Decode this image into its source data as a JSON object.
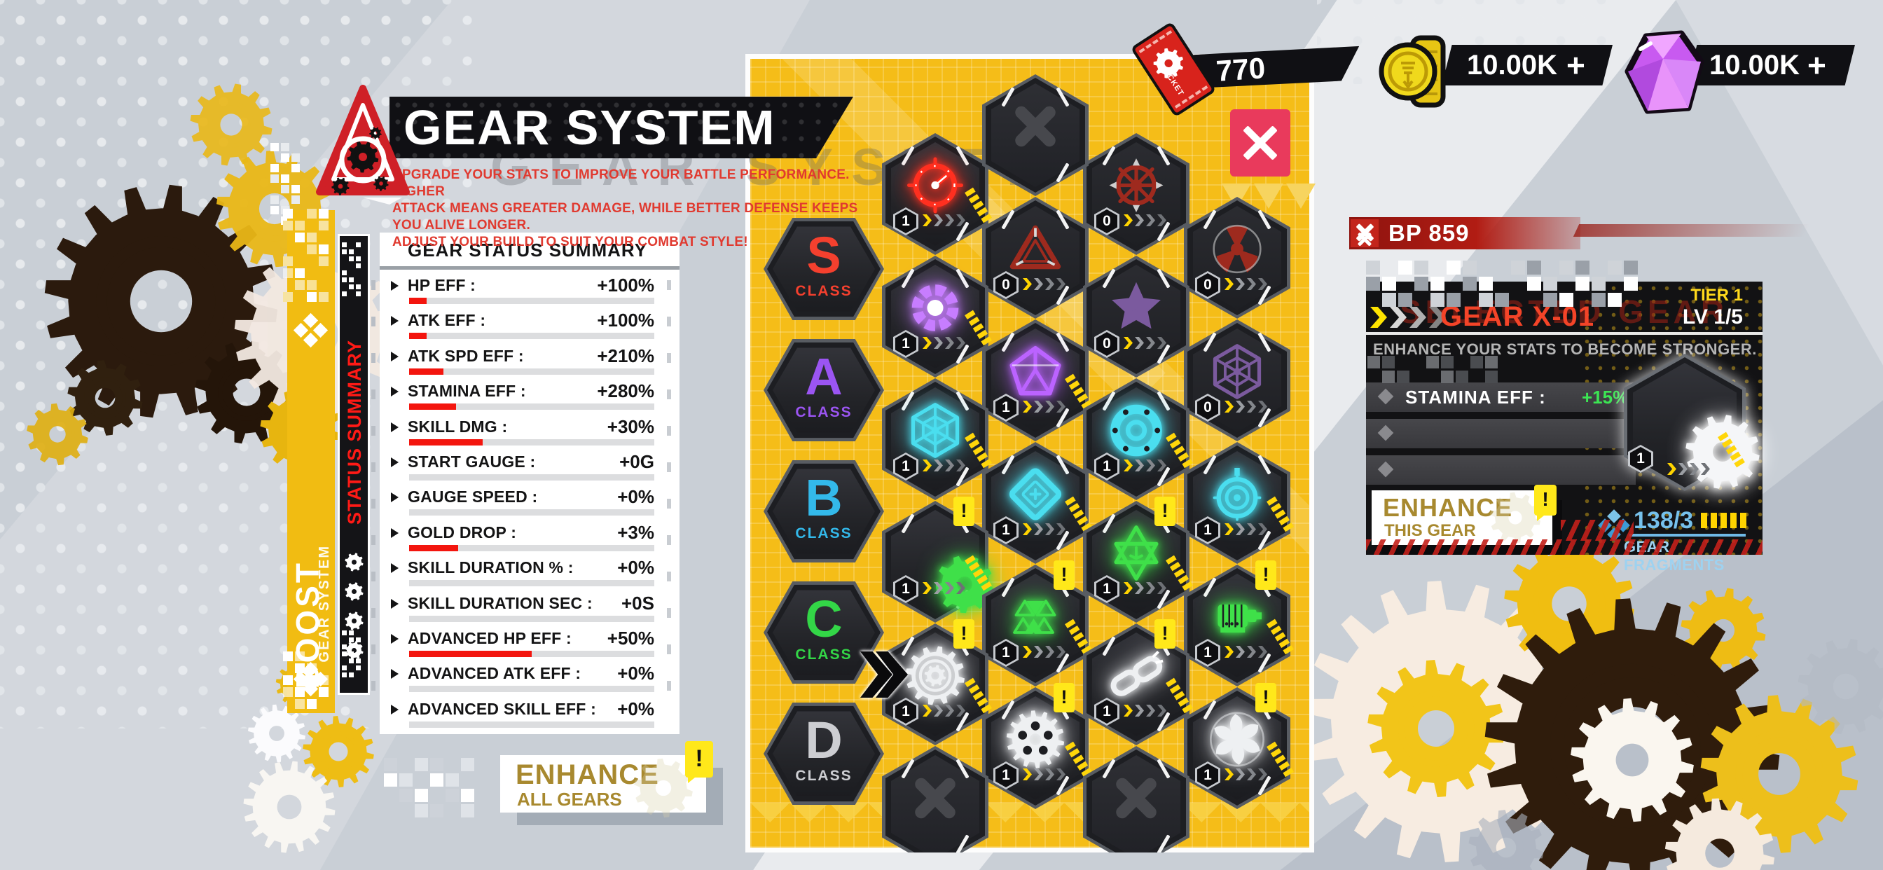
{
  "header": {
    "title": "GEAR SYSTEM",
    "ghost_title": "GEAR SYSTEM",
    "tagline_lines": [
      "UPGRADE YOUR STATS TO IMPROVE YOUR BATTLE PERFORMANCE. HIGHER",
      "ATTACK MEANS GREATER DAMAGE, WHILE BETTER DEFENSE KEEPS YOU ALIVE LONGER.",
      "ADJUST YOUR BUILD TO SUIT YOUR COMBAT STYLE!"
    ]
  },
  "side_tabs": {
    "boost": {
      "label": "BOOST",
      "sublabel": "GEAR SYSTEM"
    },
    "status_summary": {
      "label": "STATUS SUMMARY"
    }
  },
  "currencies": {
    "tickets": {
      "value": "770",
      "icon": "ticket-icon",
      "ticket_word": "TICKET"
    },
    "coins": {
      "value": "10.00K",
      "add_label": "+",
      "icon": "gold-coin-icon"
    },
    "gems": {
      "value": "10.00K",
      "add_label": "+",
      "icon": "purple-gem-icon"
    }
  },
  "battle_power": {
    "label": "BP 859"
  },
  "status_panel": {
    "title": "GEAR STATUS SUMMARY",
    "rows": [
      {
        "label": "HP EFF :",
        "value": "+100%",
        "progress": 7
      },
      {
        "label": "ATK EFF :",
        "value": "+100%",
        "progress": 7
      },
      {
        "label": "ATK SPD EFF :",
        "value": "+210%",
        "progress": 14
      },
      {
        "label": "STAMINA EFF :",
        "value": "+280%",
        "progress": 19
      },
      {
        "label": "SKILL DMG :",
        "value": "+30%",
        "progress": 30
      },
      {
        "label": "START GAUGE :",
        "value": "+0G",
        "progress": 0
      },
      {
        "label": "GAUGE SPEED :",
        "value": "+0%",
        "progress": 0
      },
      {
        "label": "GOLD DROP :",
        "value": "+3%",
        "progress": 20
      },
      {
        "label": "SKILL DURATION % :",
        "value": "+0%",
        "progress": 0
      },
      {
        "label": "SKILL DURATION SEC :",
        "value": "+0S",
        "progress": 0
      },
      {
        "label": "ADVANCED HP EFF :",
        "value": "+50%",
        "progress": 50
      },
      {
        "label": "ADVANCED ATK EFF :",
        "value": "+0%",
        "progress": 0
      },
      {
        "label": "ADVANCED SKILL EFF :",
        "value": "+0%",
        "progress": 0
      }
    ]
  },
  "enhance_all_button": {
    "line1": "ENHANCE",
    "line2": "ALL GEARS",
    "alert": "!"
  },
  "gear_grid": {
    "classes": [
      {
        "letter": "S",
        "label": "CLASS",
        "color": "#f4402e"
      },
      {
        "letter": "A",
        "label": "CLASS",
        "color": "#9b55f2"
      },
      {
        "letter": "B",
        "label": "CLASS",
        "color": "#33b9ea"
      },
      {
        "letter": "C",
        "label": "CLASS",
        "color": "#33d647"
      },
      {
        "letter": "D",
        "label": "CLASS",
        "color": "#cdced2"
      }
    ],
    "cells": [
      {
        "name": "gear-speed-gauge",
        "icon": "gauge",
        "col": 0,
        "row": 0,
        "badge": "1",
        "state": "active",
        "alert": false,
        "color": "#ff2f1f"
      },
      {
        "name": "gear-triangle-emblem",
        "icon": "tri",
        "col": 1,
        "row": 0,
        "badge": "0",
        "state": "locked",
        "alert": false,
        "color": "#9e2a1e"
      },
      {
        "name": "gear-spiked-wheel",
        "icon": "wheel",
        "col": 2,
        "row": 0,
        "badge": "0",
        "state": "locked",
        "alert": false,
        "color": "#9e2a1e"
      },
      {
        "name": "gear-radiation",
        "icon": "rad",
        "col": 3,
        "row": 0,
        "badge": "0",
        "state": "locked",
        "alert": false,
        "color": "#9e2a1e"
      },
      {
        "name": "gear-arc-reactor",
        "icon": "arc",
        "col": 0,
        "row": 1,
        "badge": "1",
        "state": "active",
        "alert": false,
        "color": "#c77dff"
      },
      {
        "name": "gear-pentagon-core",
        "icon": "penta",
        "col": 1,
        "row": 1,
        "badge": "1",
        "state": "active",
        "alert": false,
        "color": "#bb63ff"
      },
      {
        "name": "gear-star-pinwheel",
        "icon": "star5",
        "col": 2,
        "row": 1,
        "badge": "0",
        "state": "locked",
        "alert": false,
        "color": "#7b5a9e"
      },
      {
        "name": "gear-spiderweb",
        "icon": "web",
        "col": 3,
        "row": 1,
        "badge": "0",
        "state": "locked",
        "alert": false,
        "color": "#7b5a9e"
      },
      {
        "name": "gear-hex-lattice",
        "icon": "web",
        "col": 0,
        "row": 2,
        "badge": "1",
        "state": "active",
        "alert": false,
        "color": "#4adeef"
      },
      {
        "name": "gear-diamond-core",
        "icon": "dia",
        "col": 1,
        "row": 2,
        "badge": "1",
        "state": "active",
        "alert": false,
        "color": "#4adeef"
      },
      {
        "name": "gear-ball-bearing",
        "icon": "bearing",
        "col": 2,
        "row": 2,
        "badge": "1",
        "state": "active",
        "alert": false,
        "color": "#4adeef"
      },
      {
        "name": "gear-gyroscope",
        "icon": "gyro",
        "col": 3,
        "row": 2,
        "badge": "1",
        "state": "active",
        "alert": false,
        "color": "#4adeef"
      },
      {
        "name": "gear-green-cog",
        "icon": "gear",
        "col": 0,
        "row": 3,
        "badge": "1",
        "state": "active",
        "alert": true,
        "color": "#3fe049"
      },
      {
        "name": "gear-triangle-cluster",
        "icon": "tricl",
        "col": 1,
        "row": 3,
        "badge": "1",
        "state": "active",
        "alert": true,
        "color": "#3fe049"
      },
      {
        "name": "gear-hexagram",
        "icon": "hexstar",
        "col": 2,
        "row": 3,
        "badge": "1",
        "state": "active",
        "alert": true,
        "color": "#3fe049"
      },
      {
        "name": "gear-motor",
        "icon": "motor",
        "col": 3,
        "row": 3,
        "badge": "1",
        "state": "active",
        "alert": true,
        "color": "#3fe049"
      },
      {
        "name": "gear-compound-cog",
        "icon": "gearring",
        "col": 0,
        "row": 4,
        "badge": "1",
        "state": "active",
        "alert": true,
        "color": "#eef0f2"
      },
      {
        "name": "gear-spur-cog",
        "icon": "spur",
        "col": 1,
        "row": 4,
        "badge": "1",
        "state": "active",
        "alert": true,
        "color": "#eef0f2"
      },
      {
        "name": "gear-chain-links",
        "icon": "chain",
        "col": 2,
        "row": 4,
        "badge": "1",
        "state": "active",
        "alert": true,
        "color": "#eef0f2"
      },
      {
        "name": "gear-turbine-fan",
        "icon": "fan",
        "col": 3,
        "row": 4,
        "badge": "1",
        "state": "active",
        "alert": true,
        "color": "#eef0f2"
      }
    ],
    "empty_cells": [
      {
        "col": 1,
        "row": -1
      },
      {
        "col": 0,
        "row": 5
      },
      {
        "col": 2,
        "row": 5
      }
    ]
  },
  "selected_gear_panel": {
    "ghost_label": "SELECTED GEAR",
    "name": "GEAR X-01",
    "tier": "TIER 1",
    "level": "LV 1/5",
    "description": "ENHANCE YOUR STATS TO BECOME STRONGER.",
    "stats": [
      {
        "label": "STAMINA EFF :",
        "value": "+15%"
      },
      {
        "label": "",
        "value": ""
      },
      {
        "label": "",
        "value": ""
      }
    ],
    "emblem_badge": "1",
    "enhance_button": {
      "line1": "ENHANCE",
      "line2": "THIS GEAR",
      "alert": "!"
    },
    "fragments": {
      "count": "138/3",
      "label": "GEAR FRAGMENTS",
      "bars": 5
    }
  }
}
